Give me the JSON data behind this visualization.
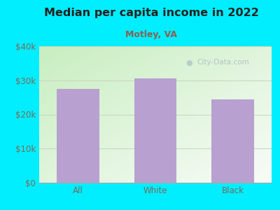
{
  "title": "Median per capita income in 2022",
  "subtitle": "Motley, VA",
  "categories": [
    "All",
    "White",
    "Black"
  ],
  "values": [
    27500,
    30500,
    24500
  ],
  "bar_color": "#b8a0d0",
  "background_outer": "#00eeff",
  "title_color": "#222222",
  "subtitle_color": "#8b6050",
  "tick_color": "#7a6a5a",
  "title_fontsize": 11.5,
  "subtitle_fontsize": 9,
  "tick_fontsize": 8.5,
  "ylim": [
    0,
    40000
  ],
  "yticks": [
    0,
    10000,
    20000,
    30000,
    40000
  ],
  "ytick_labels": [
    "$0",
    "$10k",
    "$20k",
    "$30k",
    "$40k"
  ],
  "watermark": "City-Data.com",
  "bg_colors": [
    "#c8eec0",
    "#f5fbf5"
  ],
  "grid_color": "#c8d8c0",
  "bar_width": 0.55
}
